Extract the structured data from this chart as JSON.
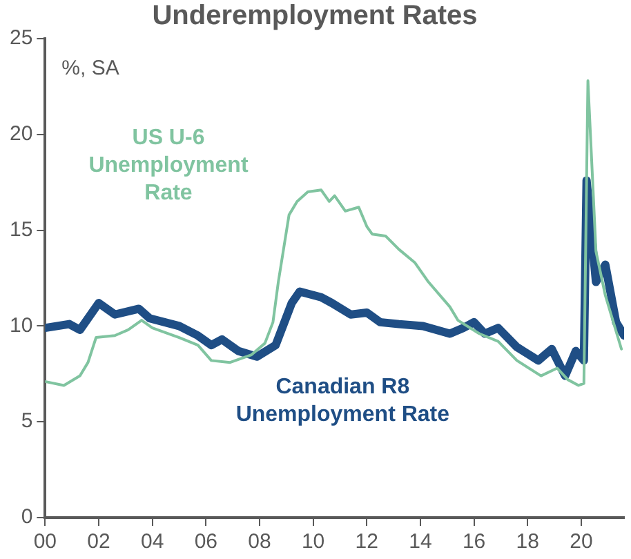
{
  "chart_data": {
    "type": "line",
    "title": "Underemployment Rates",
    "ylabel": "%, SA",
    "xlim": [
      2000,
      2021.6
    ],
    "xticks": [
      {
        "value": 2000,
        "label": "00"
      },
      {
        "value": 2002,
        "label": "02"
      },
      {
        "value": 2004,
        "label": "04"
      },
      {
        "value": 2006,
        "label": "06"
      },
      {
        "value": 2008,
        "label": "08"
      },
      {
        "value": 2010,
        "label": "10"
      },
      {
        "value": 2012,
        "label": "12"
      },
      {
        "value": 2014,
        "label": "14"
      },
      {
        "value": 2016,
        "label": "16"
      },
      {
        "value": 2018,
        "label": "18"
      },
      {
        "value": 2020,
        "label": "20"
      }
    ],
    "ylim": [
      0,
      25
    ],
    "yticks": [
      0,
      5,
      10,
      15,
      20,
      25
    ],
    "grid": false,
    "legend": false,
    "marker": "none",
    "line_style": "solid",
    "series": [
      {
        "name": "US U-6 Unemployment Rate",
        "color": "#80c4a0",
        "x": [
          2000,
          2000.7,
          2001.3,
          2001.6,
          2001.9,
          2002.6,
          2003.1,
          2003.6,
          2004,
          2005,
          2005.7,
          2006.2,
          2006.9,
          2007.7,
          2008.2,
          2008.5,
          2008.7,
          2009.1,
          2009.4,
          2009.8,
          2010.3,
          2010.6,
          2010.8,
          2011.2,
          2011.7,
          2012,
          2012.2,
          2012.7,
          2013.2,
          2013.8,
          2014.3,
          2015.1,
          2015.4,
          2016.2,
          2016.9,
          2017.6,
          2018.5,
          2019.1,
          2019.5,
          2019.9,
          2020.1,
          2020.25,
          2020.55,
          2020.9,
          2021.5
        ],
        "values": [
          7.1,
          6.9,
          7.4,
          8.1,
          9.4,
          9.5,
          9.8,
          10.3,
          9.9,
          9.4,
          9,
          8.2,
          8.1,
          8.5,
          9.1,
          10.2,
          12.3,
          15.8,
          16.5,
          17,
          17.1,
          16.5,
          16.8,
          16,
          16.2,
          15.2,
          14.8,
          14.7,
          14,
          13.3,
          12.3,
          11,
          10.3,
          9.6,
          9.2,
          8.2,
          7.4,
          7.8,
          7.2,
          6.9,
          7,
          22.8,
          13.9,
          11.6,
          8.8
        ]
      },
      {
        "name": "Canadian R8 Unemployment Rate",
        "color": "#1f4e85",
        "x": [
          2000,
          2000.9,
          2001.3,
          2002,
          2002.6,
          2003.5,
          2003.9,
          2005,
          2005.7,
          2006.2,
          2006.6,
          2007.2,
          2007.9,
          2008.6,
          2009.2,
          2009.5,
          2010.3,
          2010.7,
          2011.4,
          2012,
          2012.5,
          2013.2,
          2014.1,
          2015.1,
          2015.6,
          2016,
          2016.4,
          2016.9,
          2017.6,
          2018.4,
          2018.9,
          2019.4,
          2019.8,
          2020.1,
          2020.2,
          2020.55,
          2020.9,
          2021.3,
          2021.6
        ],
        "values": [
          9.9,
          10.1,
          9.8,
          11.2,
          10.6,
          10.9,
          10.4,
          10,
          9.5,
          9,
          9.3,
          8.7,
          8.4,
          9,
          11.2,
          11.8,
          11.5,
          11.2,
          10.6,
          10.7,
          10.2,
          10.1,
          10,
          9.6,
          9.9,
          10.2,
          9.6,
          9.9,
          8.9,
          8.2,
          8.8,
          7.4,
          8.7,
          8.2,
          17.6,
          12.3,
          13.2,
          10.2,
          9.5
        ]
      }
    ]
  }
}
